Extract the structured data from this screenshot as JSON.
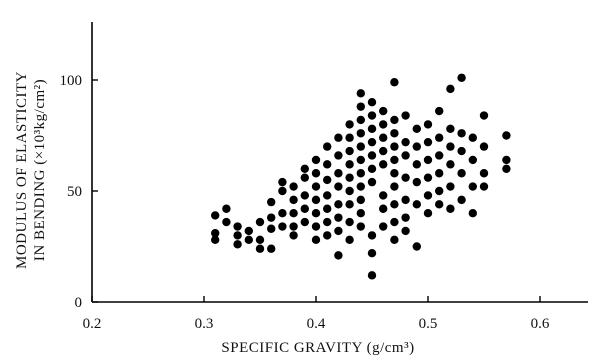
{
  "chart_data": {
    "type": "scatter",
    "title": "",
    "xlabel": "SPECIFIC GRAVITY (g/cm³)",
    "ylabel_line1": "MODULUS OF ELASTICITY",
    "ylabel_line2": "IN BENDING (×10³kg/cm²)",
    "xlim": [
      0.2,
      0.6
    ],
    "ylim": [
      0,
      100
    ],
    "x_ticks": [
      0.2,
      0.3,
      0.4,
      0.5,
      0.6
    ],
    "x_tick_labels": [
      "0.2",
      "0.3",
      "0.4",
      "0.5",
      "0.6"
    ],
    "y_ticks": [
      0,
      50,
      100
    ],
    "y_tick_labels": [
      "0",
      "50",
      "100"
    ],
    "grid": false,
    "legend": "none",
    "marker_color": "#000000",
    "points": [
      [
        0.31,
        39
      ],
      [
        0.31,
        31
      ],
      [
        0.31,
        28
      ],
      [
        0.32,
        36
      ],
      [
        0.32,
        42
      ],
      [
        0.33,
        34
      ],
      [
        0.33,
        30
      ],
      [
        0.33,
        26
      ],
      [
        0.34,
        32
      ],
      [
        0.34,
        28
      ],
      [
        0.35,
        36
      ],
      [
        0.35,
        28
      ],
      [
        0.35,
        24
      ],
      [
        0.36,
        33
      ],
      [
        0.36,
        24
      ],
      [
        0.36,
        38
      ],
      [
        0.36,
        45
      ],
      [
        0.37,
        34
      ],
      [
        0.37,
        40
      ],
      [
        0.37,
        50
      ],
      [
        0.37,
        54
      ],
      [
        0.38,
        52
      ],
      [
        0.38,
        46
      ],
      [
        0.38,
        40
      ],
      [
        0.38,
        34
      ],
      [
        0.38,
        30
      ],
      [
        0.39,
        56
      ],
      [
        0.39,
        48
      ],
      [
        0.39,
        42
      ],
      [
        0.39,
        36
      ],
      [
        0.39,
        60
      ],
      [
        0.4,
        64
      ],
      [
        0.4,
        58
      ],
      [
        0.4,
        52
      ],
      [
        0.4,
        46
      ],
      [
        0.4,
        40
      ],
      [
        0.4,
        34
      ],
      [
        0.4,
        28
      ],
      [
        0.41,
        70
      ],
      [
        0.41,
        62
      ],
      [
        0.41,
        55
      ],
      [
        0.41,
        48
      ],
      [
        0.41,
        42
      ],
      [
        0.41,
        36
      ],
      [
        0.41,
        30
      ],
      [
        0.42,
        74
      ],
      [
        0.42,
        66
      ],
      [
        0.42,
        58
      ],
      [
        0.42,
        52
      ],
      [
        0.42,
        44
      ],
      [
        0.42,
        38
      ],
      [
        0.42,
        32
      ],
      [
        0.42,
        21
      ],
      [
        0.43,
        80
      ],
      [
        0.43,
        74
      ],
      [
        0.43,
        68
      ],
      [
        0.43,
        62
      ],
      [
        0.43,
        56
      ],
      [
        0.43,
        50
      ],
      [
        0.43,
        44
      ],
      [
        0.43,
        36
      ],
      [
        0.43,
        28
      ],
      [
        0.44,
        94
      ],
      [
        0.44,
        88
      ],
      [
        0.44,
        82
      ],
      [
        0.44,
        76
      ],
      [
        0.44,
        70
      ],
      [
        0.44,
        64
      ],
      [
        0.44,
        58
      ],
      [
        0.44,
        52
      ],
      [
        0.44,
        46
      ],
      [
        0.44,
        40
      ],
      [
        0.44,
        34
      ],
      [
        0.45,
        90
      ],
      [
        0.45,
        84
      ],
      [
        0.45,
        78
      ],
      [
        0.45,
        72
      ],
      [
        0.45,
        66
      ],
      [
        0.45,
        60
      ],
      [
        0.45,
        54
      ],
      [
        0.45,
        30
      ],
      [
        0.45,
        22
      ],
      [
        0.45,
        12
      ],
      [
        0.46,
        86
      ],
      [
        0.46,
        80
      ],
      [
        0.46,
        74
      ],
      [
        0.46,
        68
      ],
      [
        0.46,
        62
      ],
      [
        0.46,
        48
      ],
      [
        0.46,
        42
      ],
      [
        0.46,
        34
      ],
      [
        0.47,
        82
      ],
      [
        0.47,
        76
      ],
      [
        0.47,
        70
      ],
      [
        0.47,
        64
      ],
      [
        0.47,
        58
      ],
      [
        0.47,
        52
      ],
      [
        0.47,
        44
      ],
      [
        0.47,
        36
      ],
      [
        0.47,
        28
      ],
      [
        0.47,
        99
      ],
      [
        0.48,
        84
      ],
      [
        0.48,
        72
      ],
      [
        0.48,
        66
      ],
      [
        0.48,
        56
      ],
      [
        0.48,
        46
      ],
      [
        0.48,
        38
      ],
      [
        0.48,
        32
      ],
      [
        0.49,
        78
      ],
      [
        0.49,
        70
      ],
      [
        0.49,
        62
      ],
      [
        0.49,
        54
      ],
      [
        0.49,
        44
      ],
      [
        0.49,
        25
      ],
      [
        0.5,
        80
      ],
      [
        0.5,
        72
      ],
      [
        0.5,
        64
      ],
      [
        0.5,
        56
      ],
      [
        0.5,
        48
      ],
      [
        0.5,
        40
      ],
      [
        0.51,
        86
      ],
      [
        0.51,
        74
      ],
      [
        0.51,
        66
      ],
      [
        0.51,
        58
      ],
      [
        0.51,
        50
      ],
      [
        0.51,
        44
      ],
      [
        0.52,
        96
      ],
      [
        0.52,
        78
      ],
      [
        0.52,
        70
      ],
      [
        0.52,
        62
      ],
      [
        0.52,
        52
      ],
      [
        0.52,
        42
      ],
      [
        0.53,
        76
      ],
      [
        0.53,
        68
      ],
      [
        0.53,
        58
      ],
      [
        0.53,
        46
      ],
      [
        0.53,
        101
      ],
      [
        0.54,
        74
      ],
      [
        0.54,
        64
      ],
      [
        0.54,
        52
      ],
      [
        0.54,
        40
      ],
      [
        0.55,
        84
      ],
      [
        0.55,
        70
      ],
      [
        0.55,
        58
      ],
      [
        0.57,
        75
      ],
      [
        0.57,
        64
      ],
      [
        0.57,
        60
      ],
      [
        0.55,
        52
      ]
    ]
  }
}
